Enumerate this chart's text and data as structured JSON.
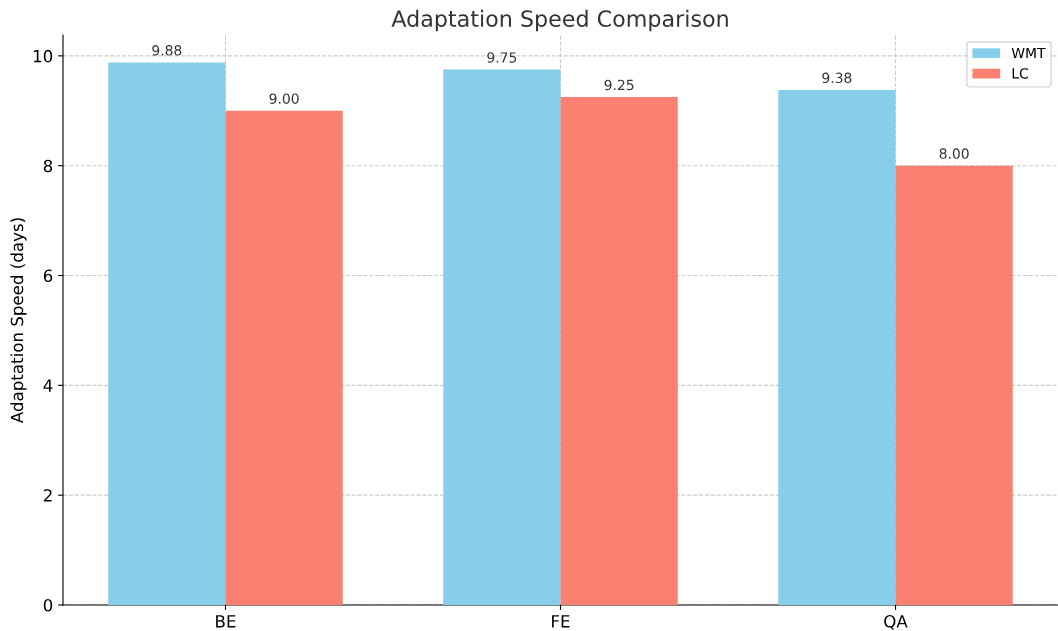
{
  "chart_data": {
    "type": "bar",
    "title": "Adaptation Speed Comparison",
    "ylabel": "Adaptation Speed (days)",
    "categories": [
      "BE",
      "FE",
      "QA"
    ],
    "series": [
      {
        "name": "WMT",
        "color": "#87ceeb",
        "values": [
          9.88,
          9.75,
          9.38
        ],
        "value_labels": [
          "9.88",
          "9.75",
          "9.38"
        ]
      },
      {
        "name": "LC",
        "color": "#fa8072",
        "values": [
          9.0,
          9.25,
          8.0
        ],
        "value_labels": [
          "9.00",
          "9.25",
          "8.00"
        ]
      }
    ],
    "ylim": [
      0,
      10.38
    ],
    "yticks": [
      0,
      2,
      4,
      6,
      8,
      10
    ],
    "grid": true,
    "legend": "top right"
  }
}
